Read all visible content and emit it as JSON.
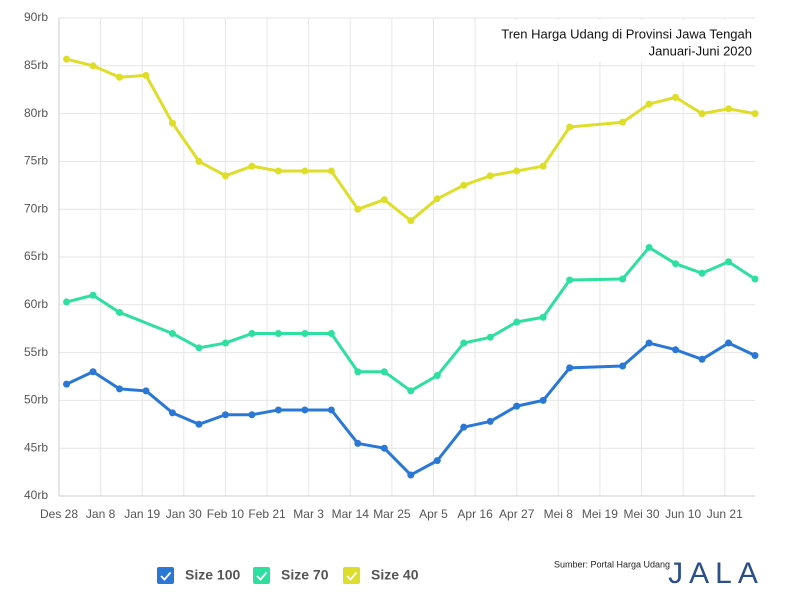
{
  "chart_data": {
    "type": "line",
    "title": "Tren Harga Udang di Provinsi Jawa Tengah",
    "subtitle": "Januari-Juni 2020",
    "source": "Sumber: Portal Harga Udang",
    "logo": "JALA",
    "grid": true,
    "xlim": [
      0,
      184
    ],
    "xticks": [
      {
        "value": 0,
        "label": "Des 28"
      },
      {
        "value": 11,
        "label": "Jan 8"
      },
      {
        "value": 22,
        "label": "Jan 19"
      },
      {
        "value": 33,
        "label": "Jan 30"
      },
      {
        "value": 44,
        "label": "Feb 10"
      },
      {
        "value": 55,
        "label": "Feb 21"
      },
      {
        "value": 66,
        "label": "Mar 3"
      },
      {
        "value": 77,
        "label": "Mar 14"
      },
      {
        "value": 88,
        "label": "Mar 25"
      },
      {
        "value": 99,
        "label": "Apr 5"
      },
      {
        "value": 110,
        "label": "Apr 16"
      },
      {
        "value": 121,
        "label": "Apr 27"
      },
      {
        "value": 132,
        "label": "Mei 8"
      },
      {
        "value": 143,
        "label": "Mei 19"
      },
      {
        "value": 154,
        "label": "Mei 30"
      },
      {
        "value": 165,
        "label": "Jun 10"
      },
      {
        "value": 176,
        "label": "Jun 21"
      }
    ],
    "ylim": [
      40000,
      90000
    ],
    "yticks": [
      {
        "value": 40000,
        "label": "40rb"
      },
      {
        "value": 45000,
        "label": "45rb"
      },
      {
        "value": 50000,
        "label": "50rb"
      },
      {
        "value": 55000,
        "label": "55rb"
      },
      {
        "value": 60000,
        "label": "60rb"
      },
      {
        "value": 65000,
        "label": "65rb"
      },
      {
        "value": 70000,
        "label": "70rb"
      },
      {
        "value": 75000,
        "label": "75rb"
      },
      {
        "value": 80000,
        "label": "80rb"
      },
      {
        "value": 85000,
        "label": "85rb"
      },
      {
        "value": 90000,
        "label": "90rb"
      }
    ],
    "series": [
      {
        "name": "Size 100",
        "color": "#2a78d6",
        "x": [
          2,
          9,
          16,
          23,
          30,
          37,
          44,
          51,
          58,
          65,
          72,
          79,
          86,
          93,
          100,
          107,
          114,
          121,
          128,
          135,
          149,
          156,
          163,
          170,
          177,
          184
        ],
        "values": [
          51700,
          53000,
          51200,
          51000,
          48700,
          47500,
          48500,
          48500,
          49000,
          49000,
          49000,
          45500,
          45000,
          42200,
          43700,
          47200,
          47800,
          49400,
          50000,
          53400,
          53600,
          56000,
          55300,
          54300,
          56000,
          54700
        ]
      },
      {
        "name": "Size 70",
        "color": "#2ee0a0",
        "x": [
          2,
          9,
          16,
          30,
          37,
          44,
          51,
          58,
          65,
          72,
          79,
          86,
          93,
          100,
          107,
          114,
          121,
          128,
          135,
          149,
          156,
          163,
          170,
          177,
          184
        ],
        "values": [
          60300,
          61000,
          59200,
          57000,
          55500,
          56000,
          57000,
          57000,
          57000,
          57000,
          53000,
          53000,
          51000,
          52600,
          56000,
          56600,
          58200,
          58700,
          62600,
          62700,
          66000,
          64300,
          63300,
          64500,
          62700
        ]
      },
      {
        "name": "Size 40",
        "color": "#dede2a",
        "x": [
          2,
          9,
          16,
          23,
          30,
          37,
          44,
          51,
          58,
          65,
          72,
          79,
          86,
          93,
          100,
          107,
          114,
          121,
          128,
          135,
          149,
          156,
          163,
          170,
          177,
          184
        ],
        "values": [
          85700,
          85000,
          83800,
          84000,
          79000,
          75000,
          73500,
          74500,
          74000,
          74000,
          74000,
          70000,
          71000,
          68800,
          71100,
          72500,
          73500,
          74000,
          74500,
          78600,
          79100,
          81000,
          81700,
          80000,
          80500,
          80000
        ]
      }
    ]
  }
}
